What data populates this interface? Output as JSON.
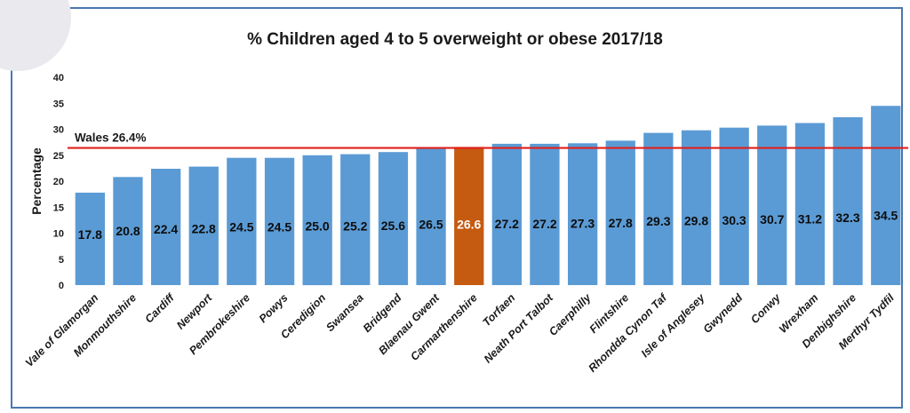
{
  "chart_data": {
    "type": "bar",
    "title": "% Children aged 4 to 5 overweight or obese 2017/18",
    "ylabel": "Percentage",
    "xlabel": "",
    "ylim": [
      0,
      40
    ],
    "yticks": [
      0,
      5,
      10,
      15,
      20,
      25,
      30,
      35,
      40
    ],
    "categories": [
      "Vale of Glamorgan",
      "Monmouthshire",
      "Cardiff",
      "Newport",
      "Pembrokeshire",
      "Powys",
      "Ceredigion",
      "Swansea",
      "Bridgend",
      "Blaenau Gwent",
      "Carmarthenshire",
      "Torfaen",
      "Neath Port Talbot",
      "Caerphilly",
      "Flintshire",
      "Rhondda Cynon Taf",
      "Isle of Anglesey",
      "Gwynedd",
      "Conwy",
      "Wrexham",
      "Denbighshire",
      "Merthyr Tydfil"
    ],
    "values": [
      17.8,
      20.8,
      22.4,
      22.8,
      24.5,
      24.5,
      25.0,
      25.2,
      25.6,
      26.5,
      26.6,
      27.2,
      27.2,
      27.3,
      27.8,
      29.3,
      29.8,
      30.3,
      30.7,
      31.2,
      32.3,
      34.5
    ],
    "value_labels": [
      "17.8",
      "20.8",
      "22.4",
      "22.8",
      "24.5",
      "24.5",
      "25.0",
      "25.2",
      "25.6",
      "26.5",
      "26.6",
      "27.2",
      "27.2",
      "27.3",
      "27.8",
      "29.3",
      "29.8",
      "30.3",
      "30.7",
      "31.2",
      "32.3",
      "34.5"
    ],
    "highlight_index": 10,
    "reference_line": {
      "label": "Wales 26.4%",
      "value": 26.4
    },
    "grid": false,
    "colors": {
      "bar": "#5b9bd5",
      "highlight": "#c55a11",
      "reference": "#e0201c",
      "label": "#0d0d0d",
      "highlight_label": "#ffffff"
    }
  }
}
